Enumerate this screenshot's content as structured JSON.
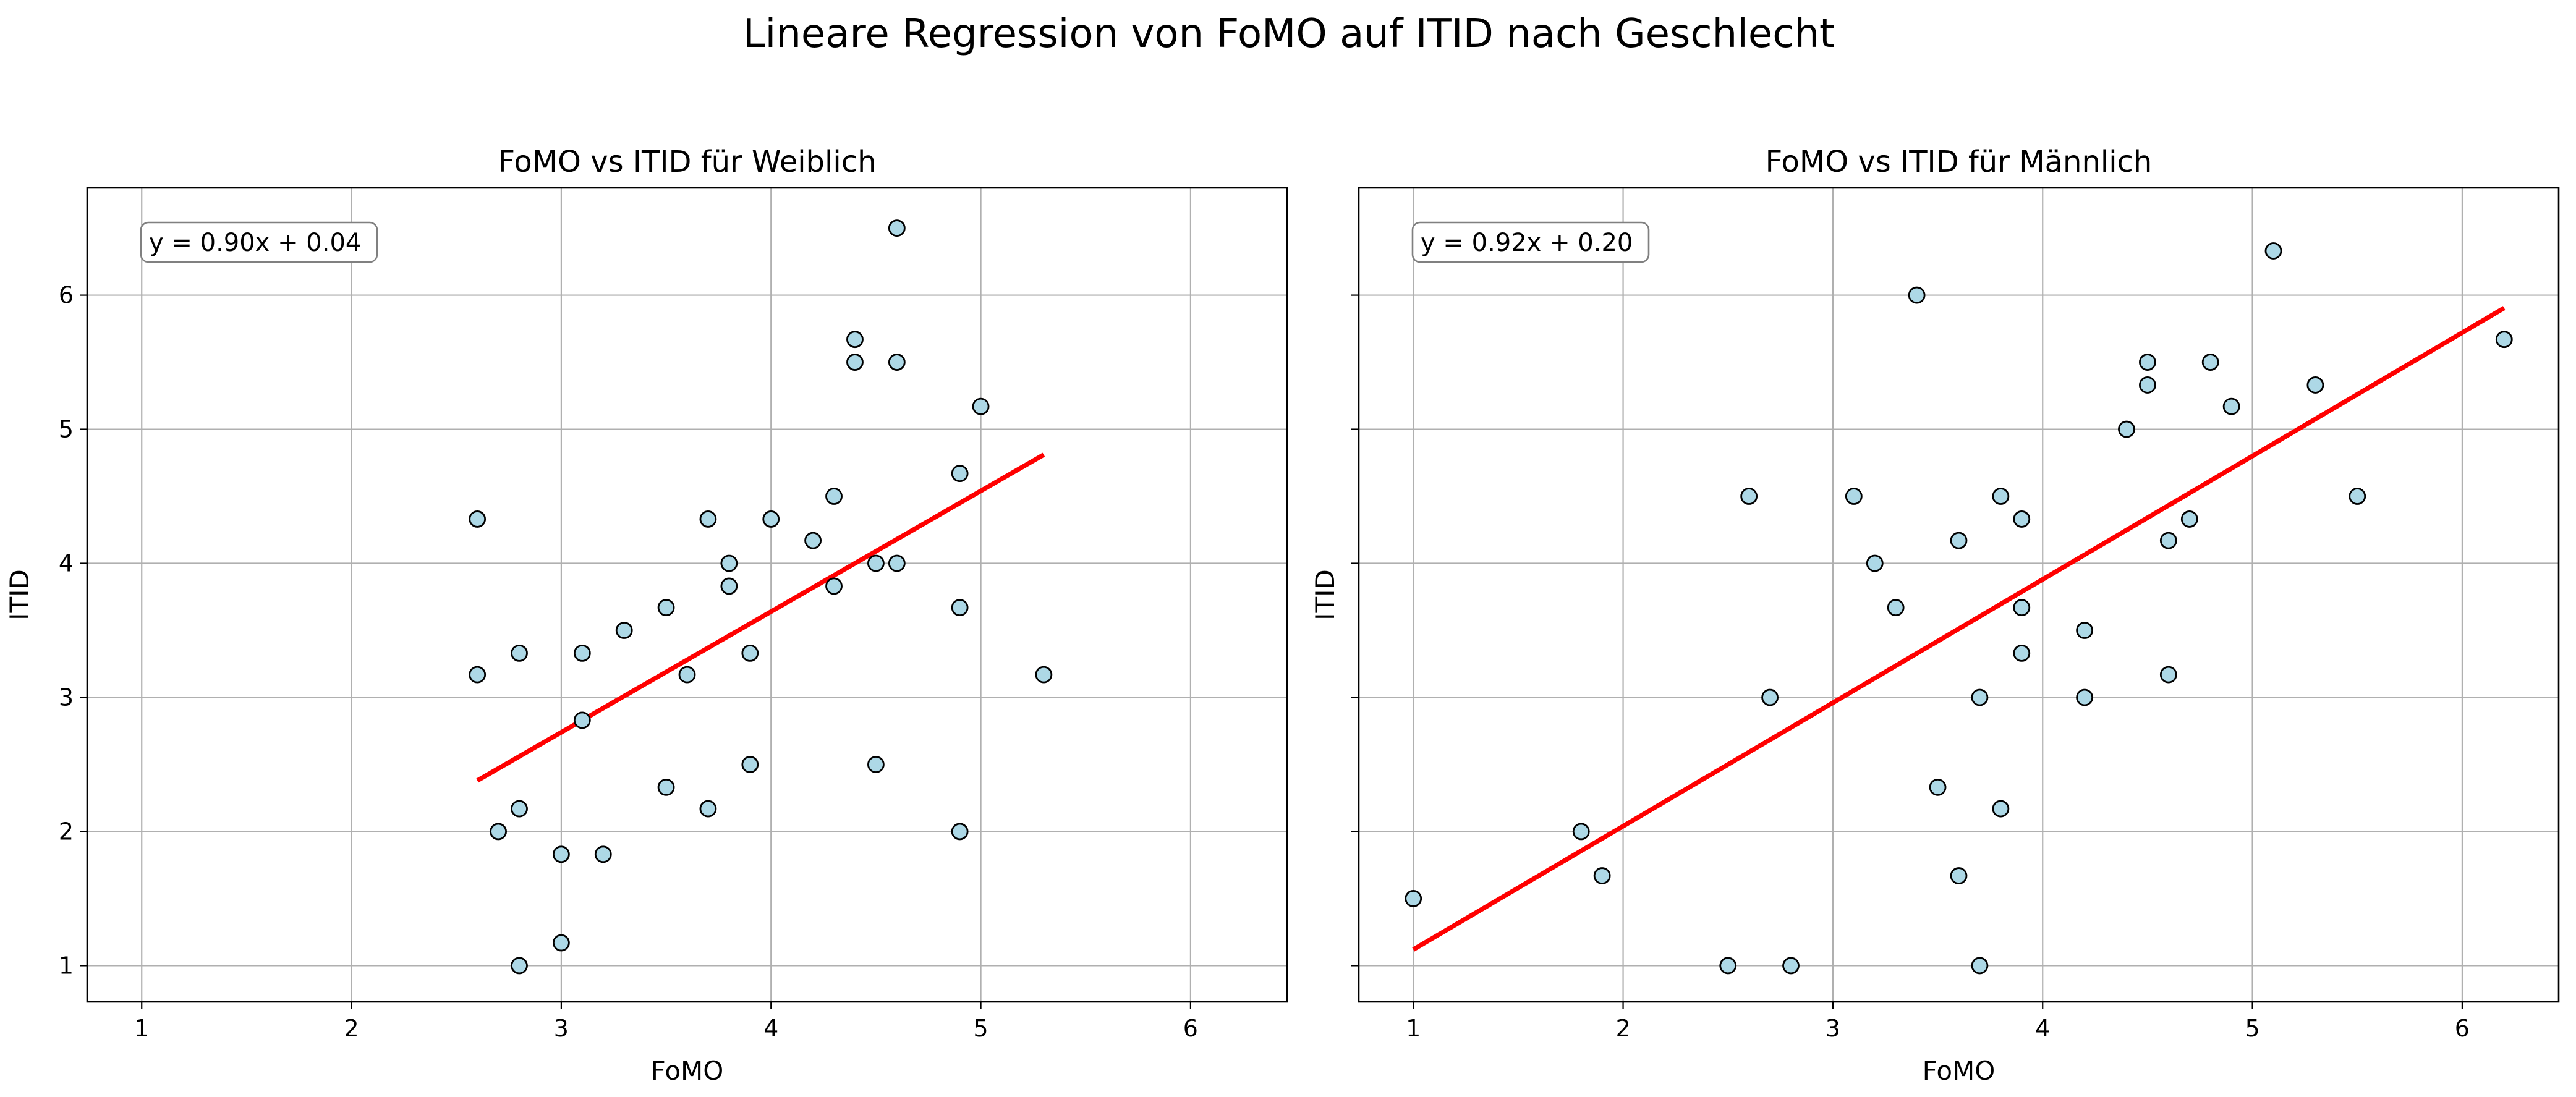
{
  "figure": {
    "suptitle": "Lineare Regression von FoMO auf ITID nach Geschlecht"
  },
  "colors": {
    "point_fill": "#add8e6",
    "point_edge": "#000000",
    "regression_line": "#ff0000",
    "grid": "#b0b0b0",
    "axes_frame": "#000000"
  },
  "chart_data": [
    {
      "type": "scatter",
      "title": "FoMO vs ITID für Weiblich",
      "xlabel": "FoMO",
      "ylabel": "ITID",
      "xlim": [
        0.74,
        6.46
      ],
      "ylim": [
        0.73,
        6.8
      ],
      "xticks": [
        1,
        2,
        3,
        4,
        5,
        6
      ],
      "yticks": [
        1,
        2,
        3,
        4,
        5,
        6
      ],
      "y_tick_labels_visible": true,
      "grid": true,
      "regression": {
        "slope": 0.9,
        "intercept": 0.04,
        "x_range": [
          2.6,
          5.3
        ],
        "label": "y = 0.90x + 0.04"
      },
      "x": [
        2.6,
        2.6,
        2.7,
        2.8,
        2.8,
        2.8,
        3.0,
        3.0,
        3.1,
        3.1,
        3.2,
        3.3,
        3.5,
        3.5,
        3.6,
        3.7,
        3.7,
        3.8,
        3.8,
        3.9,
        3.9,
        4.0,
        4.2,
        4.3,
        4.3,
        4.4,
        4.4,
        4.5,
        4.5,
        4.6,
        4.6,
        4.6,
        4.9,
        4.9,
        4.9,
        5.0,
        5.3
      ],
      "y": [
        4.33,
        3.17,
        2.0,
        3.33,
        2.17,
        1.0,
        1.83,
        1.17,
        3.33,
        2.83,
        1.83,
        3.5,
        3.67,
        2.33,
        3.17,
        4.33,
        2.17,
        4.0,
        3.83,
        3.33,
        2.5,
        4.33,
        4.17,
        4.5,
        3.83,
        5.67,
        5.5,
        4.0,
        2.5,
        6.5,
        5.5,
        4.0,
        4.67,
        3.67,
        2.0,
        5.17,
        3.17
      ]
    },
    {
      "type": "scatter",
      "title": "FoMO vs ITID für Männlich",
      "xlabel": "FoMO",
      "ylabel": "ITID",
      "xlim": [
        0.74,
        6.46
      ],
      "ylim": [
        0.73,
        6.8
      ],
      "xticks": [
        1,
        2,
        3,
        4,
        5,
        6
      ],
      "yticks": [
        1,
        2,
        3,
        4,
        5,
        6
      ],
      "y_tick_labels_visible": false,
      "grid": true,
      "regression": {
        "slope": 0.92,
        "intercept": 0.2,
        "x_range": [
          1.0,
          6.2
        ],
        "label": "y = 0.92x + 0.20"
      },
      "x": [
        1.0,
        1.8,
        1.9,
        2.5,
        2.6,
        2.7,
        2.8,
        3.1,
        3.2,
        3.3,
        3.4,
        3.5,
        3.6,
        3.6,
        3.7,
        3.7,
        3.8,
        3.8,
        3.9,
        3.9,
        3.9,
        4.2,
        4.2,
        4.4,
        4.5,
        4.5,
        4.6,
        4.6,
        4.7,
        4.8,
        4.9,
        5.1,
        5.3,
        5.5,
        6.2
      ],
      "y": [
        1.5,
        2.0,
        1.67,
        1.0,
        4.5,
        3.0,
        1.0,
        4.5,
        4.0,
        3.67,
        6.0,
        2.33,
        4.17,
        1.67,
        3.0,
        1.0,
        4.5,
        2.17,
        4.33,
        3.67,
        3.33,
        3.5,
        3.0,
        5.0,
        5.5,
        5.33,
        4.17,
        3.17,
        4.33,
        5.5,
        5.17,
        6.33,
        5.33,
        4.5,
        5.67
      ]
    }
  ]
}
